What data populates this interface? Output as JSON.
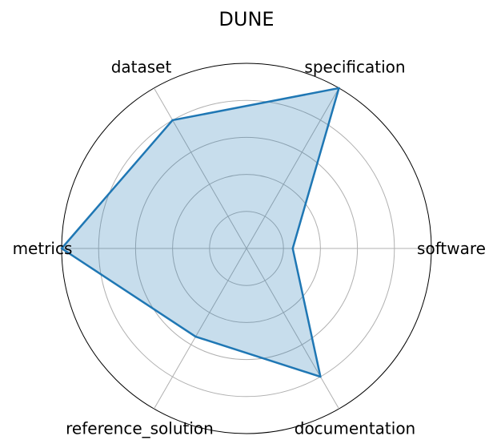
{
  "chart_data": {
    "type": "radar",
    "title": "DUNE",
    "axes": [
      "software",
      "specification",
      "dataset",
      "metrics",
      "reference_solution",
      "documentation"
    ],
    "series": [
      {
        "values": [
          0.25,
          1.0,
          0.8,
          1.0,
          0.55,
          0.8
        ]
      }
    ],
    "rlim": [
      0,
      1
    ],
    "rings": [
      0.2,
      0.4,
      0.6,
      0.8,
      1.0
    ],
    "grid": true,
    "colors": {
      "line": "#1f77b4",
      "fill": "#1f77b4",
      "grid": "#b0b0b0",
      "frame": "#000000"
    }
  }
}
